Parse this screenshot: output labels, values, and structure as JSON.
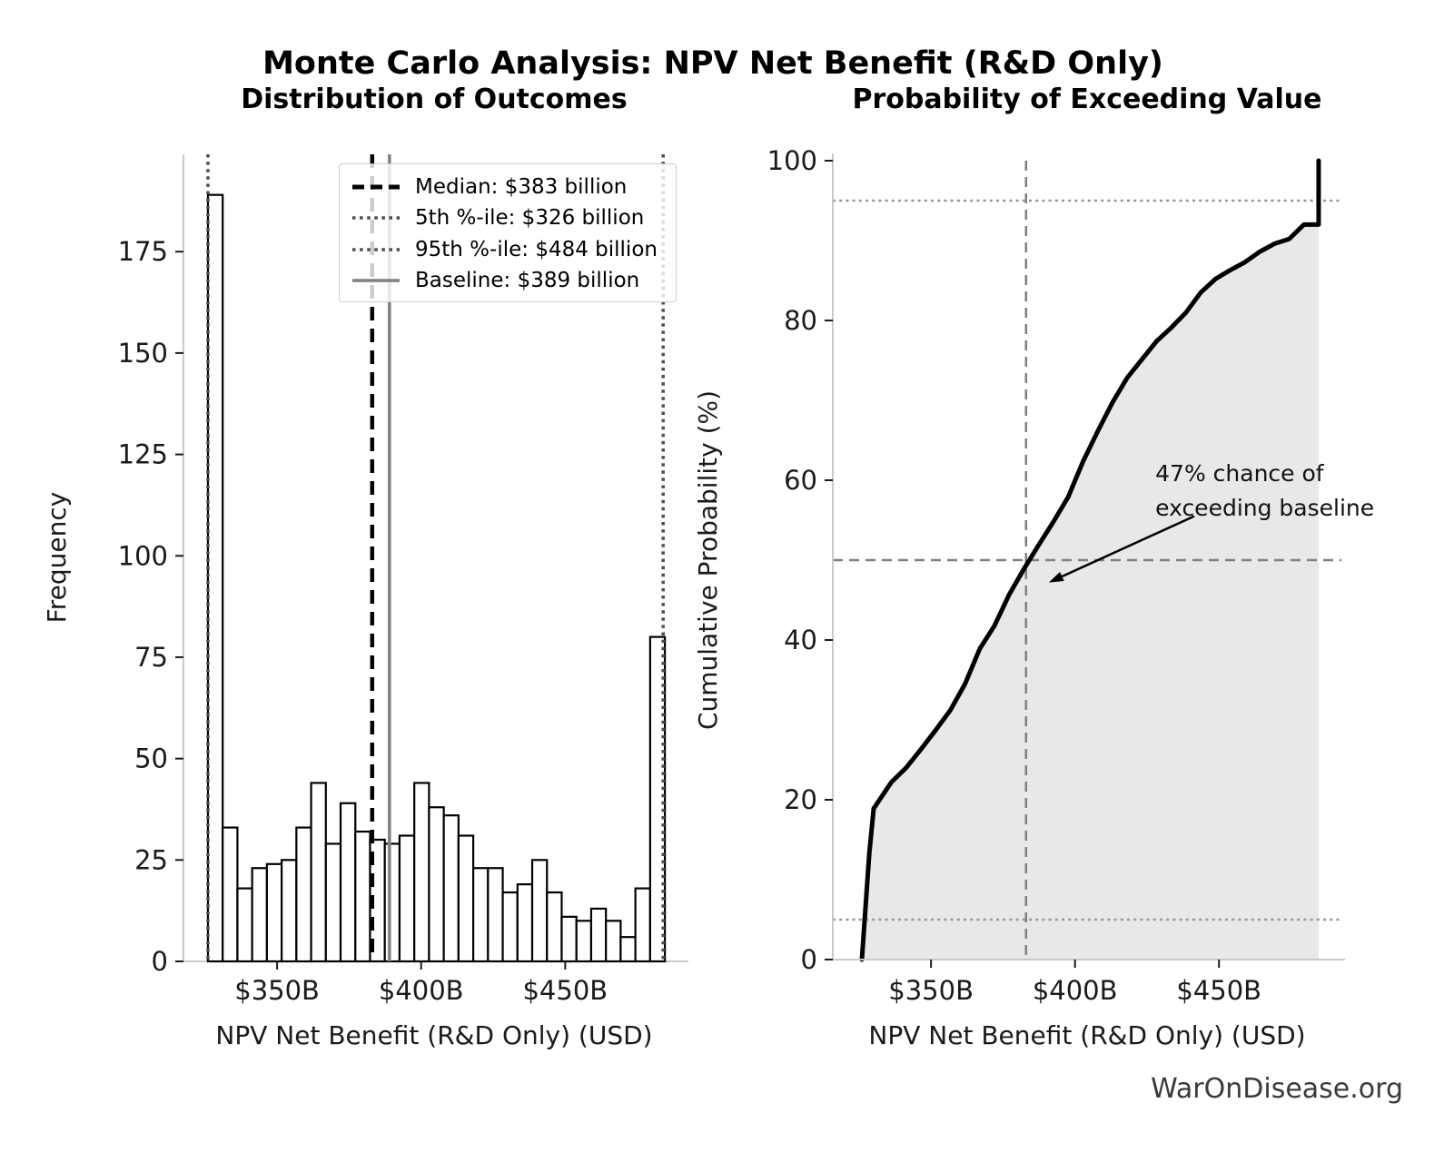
{
  "header": {
    "title": "Monte Carlo Analysis: NPV Net Benefit (R&D Only)"
  },
  "watermark": "WarOnDisease.org",
  "colors": {
    "background": "#ffffff",
    "bar_fill": "#ffffff",
    "bar_edge": "#000000",
    "curve": "#000000",
    "fill_under_curve": "#e8e8e8",
    "spine": "#c9c9c9",
    "tick_text": "#1a1a1a",
    "dashed_gray": "#808080",
    "dotted_dark": "#4d4d4d",
    "dotted_light": "#969696"
  },
  "chart_data": [
    {
      "type": "bar",
      "title": "Distribution of Outcomes",
      "xlabel": "NPV Net Benefit (R&D Only) (USD)",
      "ylabel": "Frequency",
      "unit": "billions of USD",
      "bin_start": 326,
      "bin_width": 5.116,
      "counts": [
        189,
        33,
        18,
        23,
        24,
        25,
        33,
        44,
        29,
        39,
        32,
        30,
        29,
        31,
        44,
        38,
        36,
        31,
        23,
        23,
        17,
        19,
        25,
        17,
        11,
        10,
        13,
        10,
        6,
        18,
        80
      ],
      "x_ticks": [
        {
          "value": 350,
          "label": "$350B"
        },
        {
          "value": 400,
          "label": "$400B"
        },
        {
          "value": 450,
          "label": "$450B"
        }
      ],
      "y_ticks": [
        0,
        25,
        50,
        75,
        100,
        125,
        150,
        175
      ],
      "xlim": [
        317.5,
        491.5
      ],
      "ylim": [
        0,
        199
      ],
      "grid": false,
      "legend_position": "upper right",
      "ref_lines": [
        {
          "name": "median",
          "value": 383,
          "style": "dashed",
          "color": "#000000",
          "label": "Median: $383 billion"
        },
        {
          "name": "p5",
          "value": 326,
          "style": "dotted",
          "color": "#4d4d4d",
          "label": "5th %-ile: $326 billion"
        },
        {
          "name": "p95",
          "value": 484,
          "style": "dotted",
          "color": "#4d4d4d",
          "label": "95th %-ile: $484 billion"
        },
        {
          "name": "baseline",
          "value": 389,
          "style": "solid",
          "color": "#808080",
          "label": "Baseline: $389 billion"
        }
      ]
    },
    {
      "type": "line",
      "title": "Probability of Exceeding Value",
      "xlabel": "NPV Net Benefit (R&D Only) (USD)",
      "ylabel": "Cumulative Probability (%)",
      "curve_note": "empirical cumulative distribution derived from the histogram counts; rises from 0% at $326B to 100% at $484.6B",
      "x_ticks": [
        {
          "value": 350,
          "label": "$350B"
        },
        {
          "value": 400,
          "label": "$400B"
        },
        {
          "value": 450,
          "label": "$450B"
        }
      ],
      "y_ticks": [
        0,
        20,
        40,
        60,
        80,
        100
      ],
      "xlim": [
        315.9,
        492.5
      ],
      "ylim": [
        0,
        100
      ],
      "grid": false,
      "fill_under_curve": true,
      "h_lines": [
        {
          "value": 95,
          "style": "dotted"
        },
        {
          "value": 50,
          "style": "dashed"
        },
        {
          "value": 5,
          "style": "dotted"
        }
      ],
      "v_lines": [
        {
          "value": 383,
          "style": "dashed"
        }
      ],
      "annotation": {
        "line1": "47% chance of",
        "line2": "exceeding baseline",
        "text_pos": [
          427.9,
          63.0
        ],
        "arrow_tail": [
          441.4,
          55.5
        ],
        "arrow_tip": [
          390.9,
          47.2
        ]
      }
    }
  ]
}
